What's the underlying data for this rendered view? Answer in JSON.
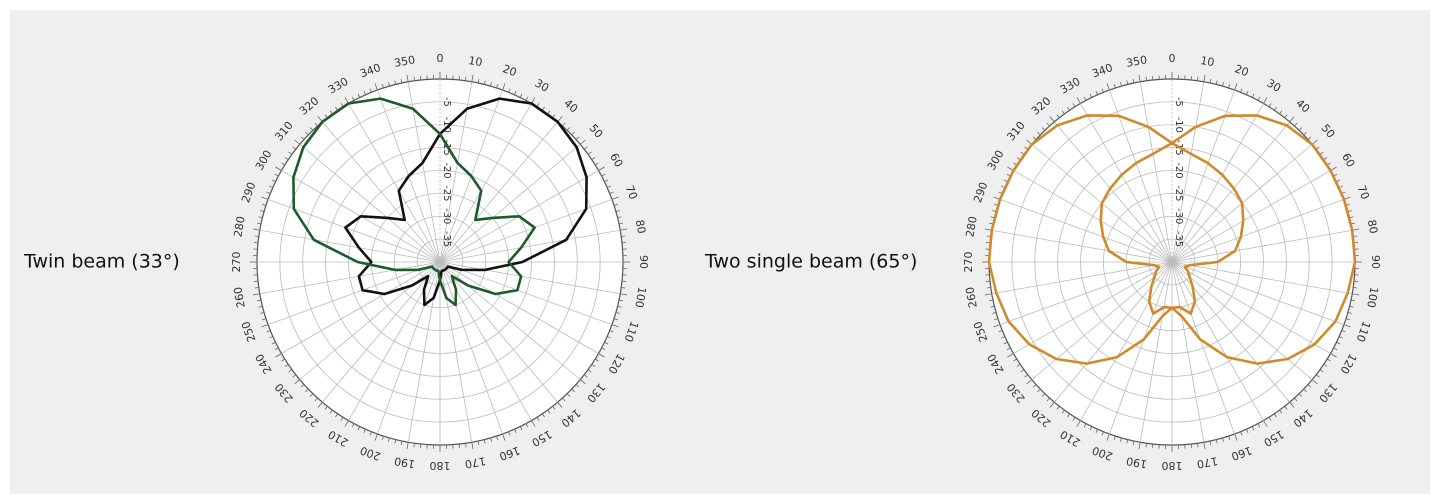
{
  "chart_data": [
    {
      "type": "polar",
      "title": "Twin beam (33°)",
      "theta": [
        0,
        10,
        20,
        30,
        40,
        50,
        60,
        70,
        80,
        90,
        100,
        110,
        120,
        130,
        140,
        150,
        160,
        170,
        180,
        190,
        200,
        210,
        220,
        230,
        240,
        250,
        260,
        270,
        280,
        290,
        300,
        310,
        320,
        330,
        340,
        350
      ],
      "thetaticks": [
        0,
        10,
        20,
        30,
        40,
        50,
        60,
        70,
        80,
        90,
        100,
        110,
        120,
        130,
        140,
        150,
        160,
        170,
        180,
        190,
        200,
        210,
        220,
        230,
        240,
        250,
        260,
        270,
        280,
        290,
        300,
        310,
        320,
        330,
        340,
        350
      ],
      "rlim": [
        -40,
        0
      ],
      "rticks": [
        -35,
        -30,
        -25,
        -20,
        -15,
        -10,
        -5
      ],
      "series": [
        {
          "color": "#111111",
          "values": [
            -12,
            -6,
            -2,
            0,
            0,
            -1,
            -3,
            -6,
            -12,
            -22,
            -30,
            -35,
            -38,
            -38,
            -38,
            -38,
            -38,
            -38,
            -36,
            -32,
            -30,
            -33,
            -36,
            -32,
            -26,
            -22,
            -22,
            -25,
            -22,
            -18,
            -20,
            -25,
            -28,
            -22,
            -20,
            -18
          ]
        },
        {
          "color": "#1f5a2a",
          "values": [
            -12,
            -18,
            -20,
            -22,
            -28,
            -25,
            -20,
            -18,
            -22,
            -25,
            -22,
            -22,
            -26,
            -32,
            -36,
            -33,
            -30,
            -32,
            -36,
            -38,
            -38,
            -38,
            -38,
            -38,
            -38,
            -35,
            -30,
            -22,
            -12,
            -6,
            -3,
            -1,
            0,
            0,
            -2,
            -6
          ]
        }
      ]
    },
    {
      "type": "polar",
      "title": "Two single beam (65°)",
      "theta": [
        0,
        10,
        20,
        30,
        40,
        50,
        60,
        70,
        80,
        90,
        100,
        110,
        120,
        130,
        140,
        150,
        160,
        170,
        180,
        190,
        200,
        210,
        220,
        230,
        240,
        250,
        260,
        270,
        280,
        290,
        300,
        310,
        320,
        330,
        340,
        350
      ],
      "thetaticks": [
        0,
        10,
        20,
        30,
        40,
        50,
        60,
        70,
        80,
        90,
        100,
        110,
        120,
        130,
        140,
        150,
        160,
        170,
        180,
        190,
        200,
        210,
        220,
        230,
        240,
        250,
        260,
        270,
        280,
        290,
        300,
        310,
        320,
        330,
        340,
        350
      ],
      "rlim": [
        -40,
        0
      ],
      "rticks": [
        -35,
        -30,
        -25,
        -20,
        -15,
        -10,
        -5
      ],
      "series": [
        {
          "color": "#d08a2b",
          "values": [
            -14,
            -10,
            -6,
            -3,
            -1,
            0,
            0,
            0,
            0,
            0,
            -1,
            -2,
            -4,
            -7,
            -11,
            -16,
            -22,
            -28,
            -30,
            -30,
            -28,
            -30,
            -33,
            -35,
            -36,
            -37,
            -36,
            -30,
            -26,
            -24,
            -22,
            -20,
            -19,
            -18,
            -17,
            -16
          ]
        },
        {
          "color": "#d08a2b",
          "values": [
            -14,
            -16,
            -17,
            -18,
            -19,
            -20,
            -22,
            -24,
            -26,
            -30,
            -36,
            -37,
            -36,
            -35,
            -33,
            -30,
            -28,
            -30,
            -30,
            -28,
            -22,
            -16,
            -11,
            -7,
            -4,
            -2,
            -1,
            0,
            0,
            0,
            0,
            0,
            -1,
            -3,
            -6,
            -10
          ]
        }
      ]
    }
  ]
}
